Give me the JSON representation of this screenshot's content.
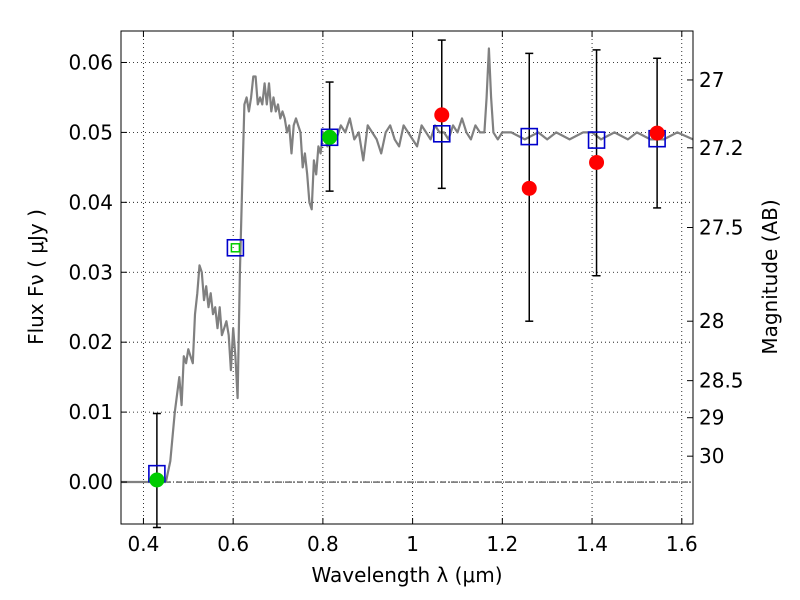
{
  "chart_data": {
    "type": "scatter",
    "title": "",
    "xlabel": "Wavelength  λ (μm)",
    "ylabel": "Flux  Fν  ( μJy )",
    "y2label": "Magnitude (AB)",
    "xlim": [
      0.35,
      1.625
    ],
    "ylim": [
      -0.006,
      0.0645
    ],
    "grid": true,
    "x_ticks": [
      0.4,
      0.6,
      0.8,
      1.0,
      1.2,
      1.4,
      1.6
    ],
    "x_tick_labels": [
      "0.4",
      "0.6",
      "0.8",
      "1",
      "1.2",
      "1.4",
      "1.6"
    ],
    "y_ticks": [
      0.0,
      0.01,
      0.02,
      0.03,
      0.04,
      0.05,
      0.06
    ],
    "y_tick_labels": [
      "0.00",
      "0.01",
      "0.02",
      "0.03",
      "0.04",
      "0.05",
      "0.06"
    ],
    "y2_ticks": [
      {
        "label": "27",
        "flux": 0.0575
      },
      {
        "label": "27.2",
        "flux": 0.0478
      },
      {
        "label": "27.5",
        "flux": 0.0364
      },
      {
        "label": "28",
        "flux": 0.023
      },
      {
        "label": "28.5",
        "flux": 0.0145
      },
      {
        "label": "29",
        "flux": 0.0092
      },
      {
        "label": "30",
        "flux": 0.0037
      }
    ],
    "zero_line": 0.0,
    "model_spectrum": {
      "color": "#808080",
      "x": [
        0.35,
        0.43,
        0.45,
        0.46,
        0.47,
        0.48,
        0.485,
        0.49,
        0.495,
        0.5,
        0.505,
        0.51,
        0.515,
        0.52,
        0.525,
        0.53,
        0.535,
        0.54,
        0.545,
        0.55,
        0.555,
        0.56,
        0.565,
        0.57,
        0.575,
        0.58,
        0.585,
        0.59,
        0.595,
        0.6,
        0.605,
        0.61,
        0.615,
        0.62,
        0.625,
        0.63,
        0.635,
        0.64,
        0.645,
        0.65,
        0.655,
        0.66,
        0.665,
        0.67,
        0.675,
        0.68,
        0.685,
        0.69,
        0.695,
        0.7,
        0.705,
        0.71,
        0.715,
        0.72,
        0.725,
        0.73,
        0.735,
        0.74,
        0.745,
        0.75,
        0.755,
        0.76,
        0.765,
        0.77,
        0.775,
        0.78,
        0.785,
        0.79,
        0.795,
        0.8,
        0.81,
        0.82,
        0.83,
        0.84,
        0.85,
        0.86,
        0.87,
        0.88,
        0.89,
        0.9,
        0.91,
        0.92,
        0.93,
        0.94,
        0.95,
        0.96,
        0.97,
        0.98,
        0.99,
        1.0,
        1.01,
        1.02,
        1.03,
        1.04,
        1.05,
        1.06,
        1.07,
        1.08,
        1.09,
        1.1,
        1.11,
        1.12,
        1.13,
        1.14,
        1.15,
        1.16,
        1.165,
        1.17,
        1.175,
        1.18,
        1.19,
        1.2,
        1.22,
        1.25,
        1.28,
        1.3,
        1.32,
        1.35,
        1.38,
        1.4,
        1.42,
        1.45,
        1.48,
        1.5,
        1.53,
        1.56,
        1.59,
        1.625
      ],
      "y": [
        0.0,
        0.0,
        0.0,
        0.003,
        0.01,
        0.015,
        0.011,
        0.018,
        0.017,
        0.019,
        0.018,
        0.017,
        0.024,
        0.027,
        0.031,
        0.03,
        0.026,
        0.028,
        0.025,
        0.027,
        0.024,
        0.025,
        0.022,
        0.025,
        0.021,
        0.022,
        0.023,
        0.021,
        0.016,
        0.022,
        0.018,
        0.012,
        0.03,
        0.042,
        0.054,
        0.055,
        0.053,
        0.055,
        0.058,
        0.058,
        0.054,
        0.055,
        0.054,
        0.057,
        0.054,
        0.057,
        0.053,
        0.055,
        0.053,
        0.054,
        0.052,
        0.053,
        0.052,
        0.05,
        0.051,
        0.047,
        0.051,
        0.052,
        0.051,
        0.05,
        0.045,
        0.047,
        0.044,
        0.04,
        0.039,
        0.046,
        0.044,
        0.048,
        0.047,
        0.05,
        0.048,
        0.05,
        0.049,
        0.051,
        0.05,
        0.052,
        0.049,
        0.05,
        0.046,
        0.051,
        0.05,
        0.049,
        0.047,
        0.05,
        0.051,
        0.049,
        0.048,
        0.051,
        0.05,
        0.049,
        0.048,
        0.051,
        0.05,
        0.049,
        0.051,
        0.05,
        0.05,
        0.049,
        0.051,
        0.05,
        0.052,
        0.05,
        0.049,
        0.051,
        0.05,
        0.05,
        0.055,
        0.062,
        0.055,
        0.05,
        0.049,
        0.05,
        0.05,
        0.049,
        0.05,
        0.049,
        0.05,
        0.049,
        0.05,
        0.05,
        0.049,
        0.05,
        0.049,
        0.05,
        0.049,
        0.049,
        0.05,
        0.049
      ]
    },
    "series": [
      {
        "marker": "square",
        "color": "#0000cc",
        "x": [
          0.43,
          0.605,
          0.815,
          1.065,
          1.26,
          1.41,
          1.545
        ],
        "y": [
          0.0012,
          0.0335,
          0.0493,
          0.0498,
          0.0494,
          0.0489,
          0.0491
        ]
      },
      {
        "marker": "circle",
        "color": "#ff0000",
        "x": [
          1.065,
          1.26,
          1.41,
          1.545
        ],
        "y": [
          0.0525,
          0.042,
          0.0457,
          0.0499
        ],
        "yerr_low": [
          0.0105,
          0.019,
          0.0162,
          0.0107
        ],
        "yerr_high": [
          0.0107,
          0.0193,
          0.0161,
          0.0107
        ]
      },
      {
        "marker": "circle",
        "color": "#00cc00",
        "x": [
          0.43,
          0.815
        ],
        "y": [
          0.0003,
          0.0493
        ],
        "yerr_low": [
          0.0068,
          0.0077
        ],
        "yerr_high": [
          0.0095,
          0.0079
        ]
      },
      {
        "marker": "small-square",
        "color": "#00cc00",
        "x": [
          0.605
        ],
        "y": [
          0.0335
        ]
      }
    ]
  }
}
